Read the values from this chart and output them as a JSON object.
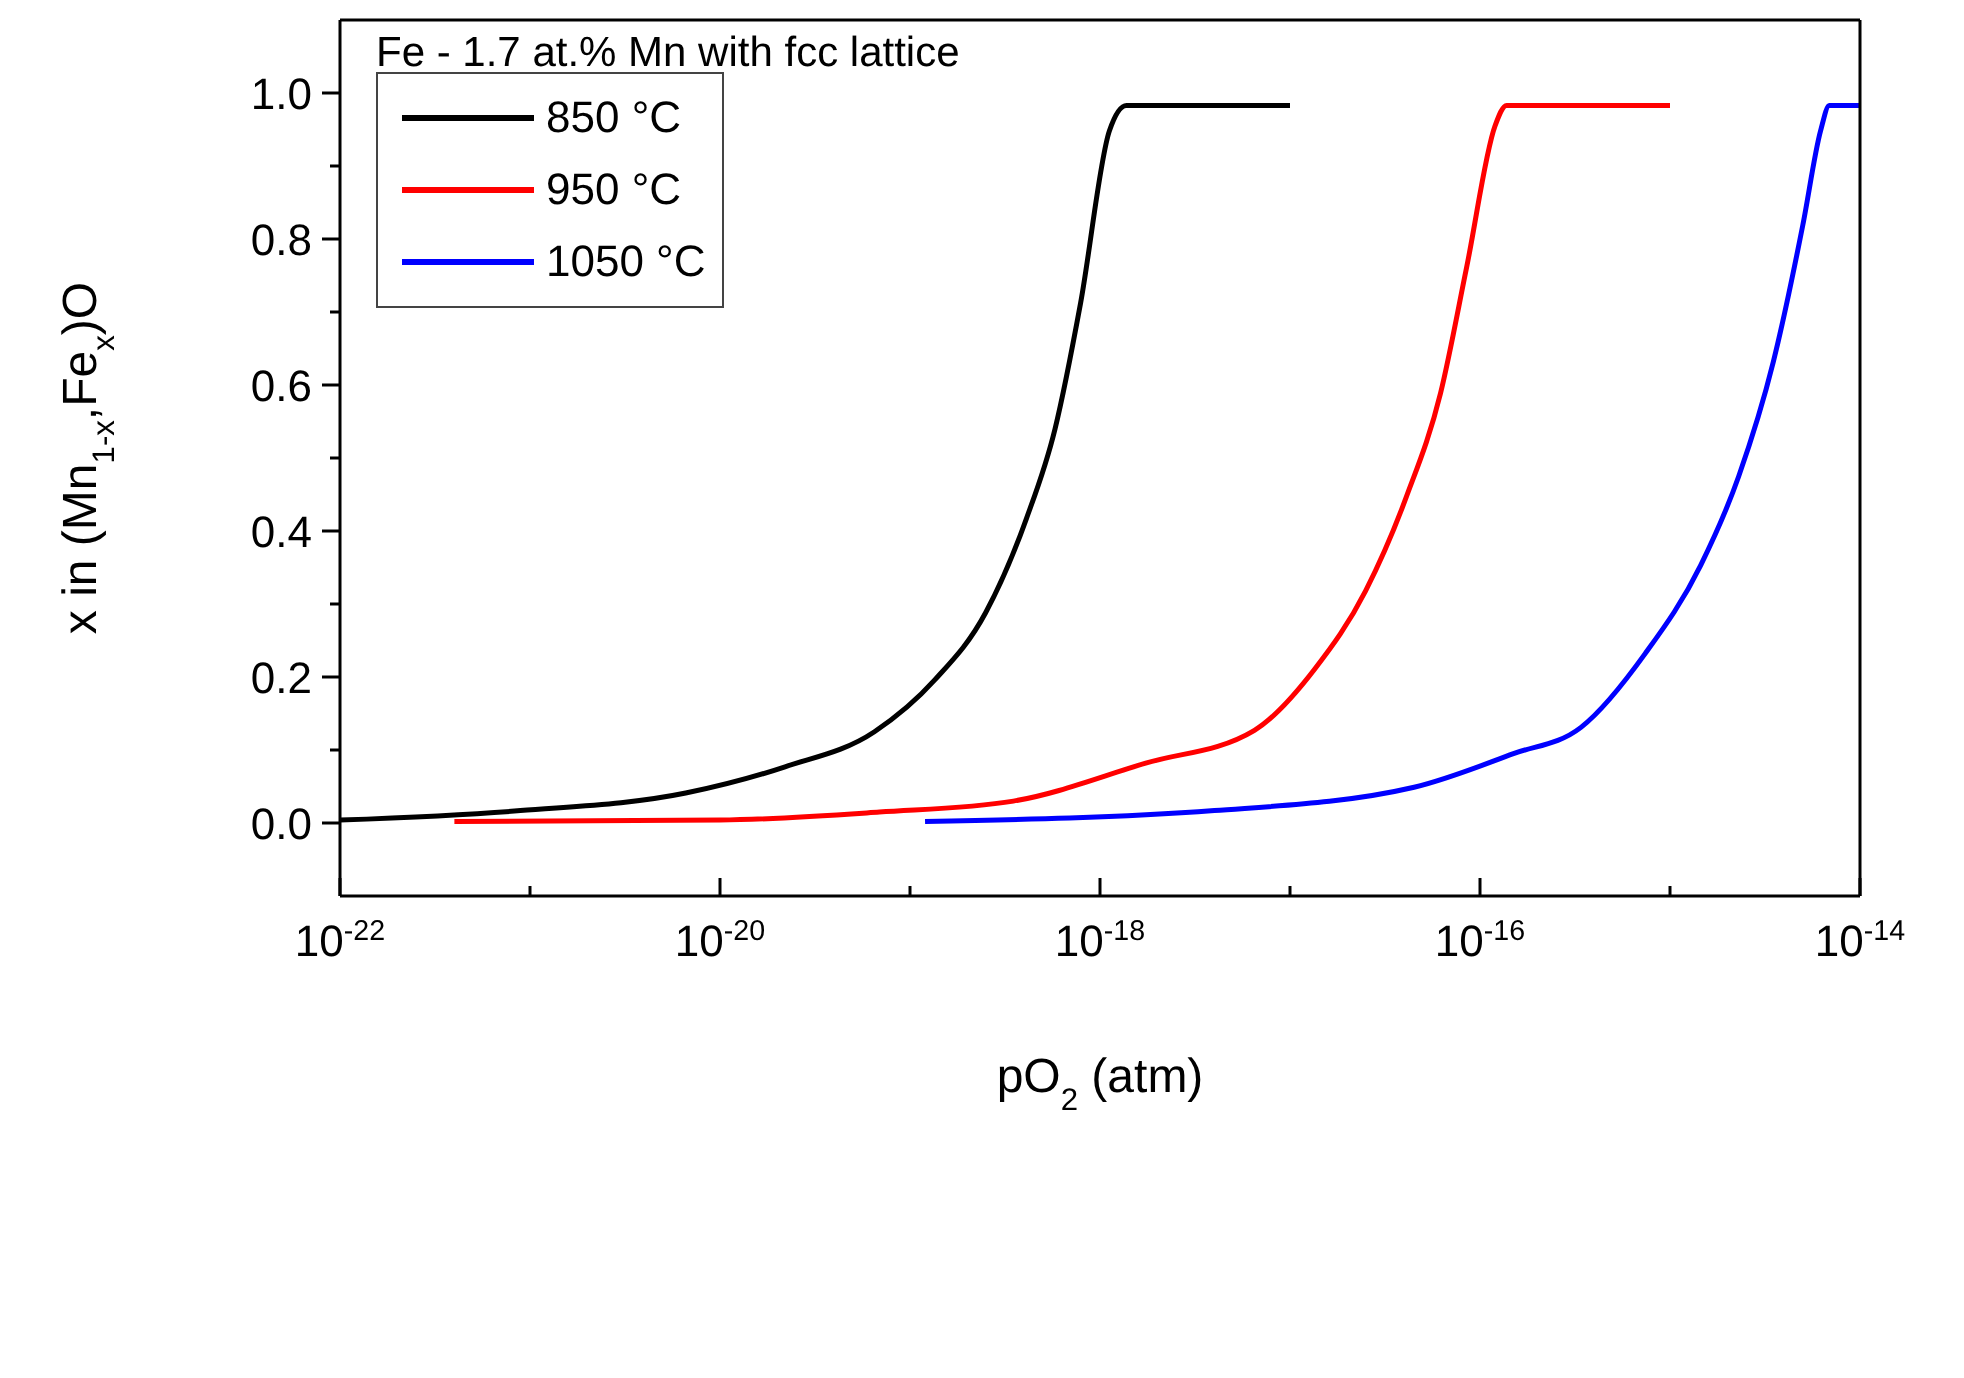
{
  "chart_data": {
    "type": "line",
    "title": "Fe - 1.7 at.% Mn with fcc lattice",
    "xlabel": "pO$_{2}$ (atm)",
    "ylabel": "x in (Mn$_{1-x}$,Fe$_{x}$)O",
    "log": "x",
    "legend": "top left",
    "xlim": [
      1e-22,
      1e-14
    ],
    "ylim": [
      -0.1,
      1.1
    ],
    "xticks": [
      {
        "value": 1e-22,
        "label": "10$^{-22}$"
      },
      {
        "value": 1e-21,
        "label": null
      },
      {
        "value": 1e-20,
        "label": "10$^{-20}$"
      },
      {
        "value": 1e-19,
        "label": null
      },
      {
        "value": 1e-18,
        "label": "10$^{-18}$"
      },
      {
        "value": 1e-17,
        "label": null
      },
      {
        "value": 1e-16,
        "label": "10$^{-16}$"
      },
      {
        "value": 1e-15,
        "label": null
      },
      {
        "value": 1e-14,
        "label": "10$^{-14}$"
      }
    ],
    "yticks": [
      {
        "value": 0,
        "label": "0.0"
      },
      {
        "value": 0.1,
        "label": null
      },
      {
        "value": 0.2,
        "label": "0.2"
      },
      {
        "value": 0.3,
        "label": null
      },
      {
        "value": 0.4,
        "label": "0.4"
      },
      {
        "value": 0.5,
        "label": null
      },
      {
        "value": 0.6,
        "label": "0.6"
      },
      {
        "value": 0.7,
        "label": null
      },
      {
        "value": 0.8,
        "label": "0.8"
      },
      {
        "value": 0.9,
        "label": null
      },
      {
        "value": 1,
        "label": "1.0"
      }
    ],
    "series": [
      {
        "name": "850 °C",
        "color": "#000000",
        "x": [
          1e-22,
          8.9e-22,
          6.6e-21,
          2.2e-20,
          6.5e-20,
          1.35e-19,
          2.5e-19,
          4.1e-19,
          5.8e-19,
          7.9e-19,
          1.12e-18,
          1.38e-18,
          1e-17
        ],
        "values": [
          0.004,
          0.017,
          0.041,
          0.077,
          0.125,
          0.196,
          0.288,
          0.417,
          0.54,
          0.712,
          0.948,
          0.983,
          0.983
        ]
      },
      {
        "name": "950 °C",
        "color": "#ff0000",
        "x": [
          4e-22,
          1e-20,
          6.9e-20,
          3.5e-19,
          1.74e-18,
          6.5e-18,
          1.35e-17,
          2.5e-17,
          4.1e-17,
          6.2e-17,
          8.5e-17,
          1.2e-16,
          1.38e-16,
          1e-15
        ],
        "values": [
          0.002,
          0.004,
          0.015,
          0.03,
          0.082,
          0.127,
          0.211,
          0.318,
          0.447,
          0.589,
          0.761,
          0.955,
          0.983,
          0.983
        ]
      },
      {
        "name": "1050 °C",
        "color": "#0000ff",
        "x": [
          1.2e-19,
          4e-18,
          4.5e-17,
          1.5e-16,
          3.4e-16,
          7.4e-16,
          1.45e-15,
          2.3e-15,
          3.5e-15,
          5e-15,
          6.2e-15,
          6.9e-15,
          1e-14
        ],
        "values": [
          0.002,
          0.017,
          0.049,
          0.095,
          0.131,
          0.232,
          0.353,
          0.475,
          0.632,
          0.819,
          0.948,
          0.983,
          0.983
        ]
      }
    ]
  }
}
